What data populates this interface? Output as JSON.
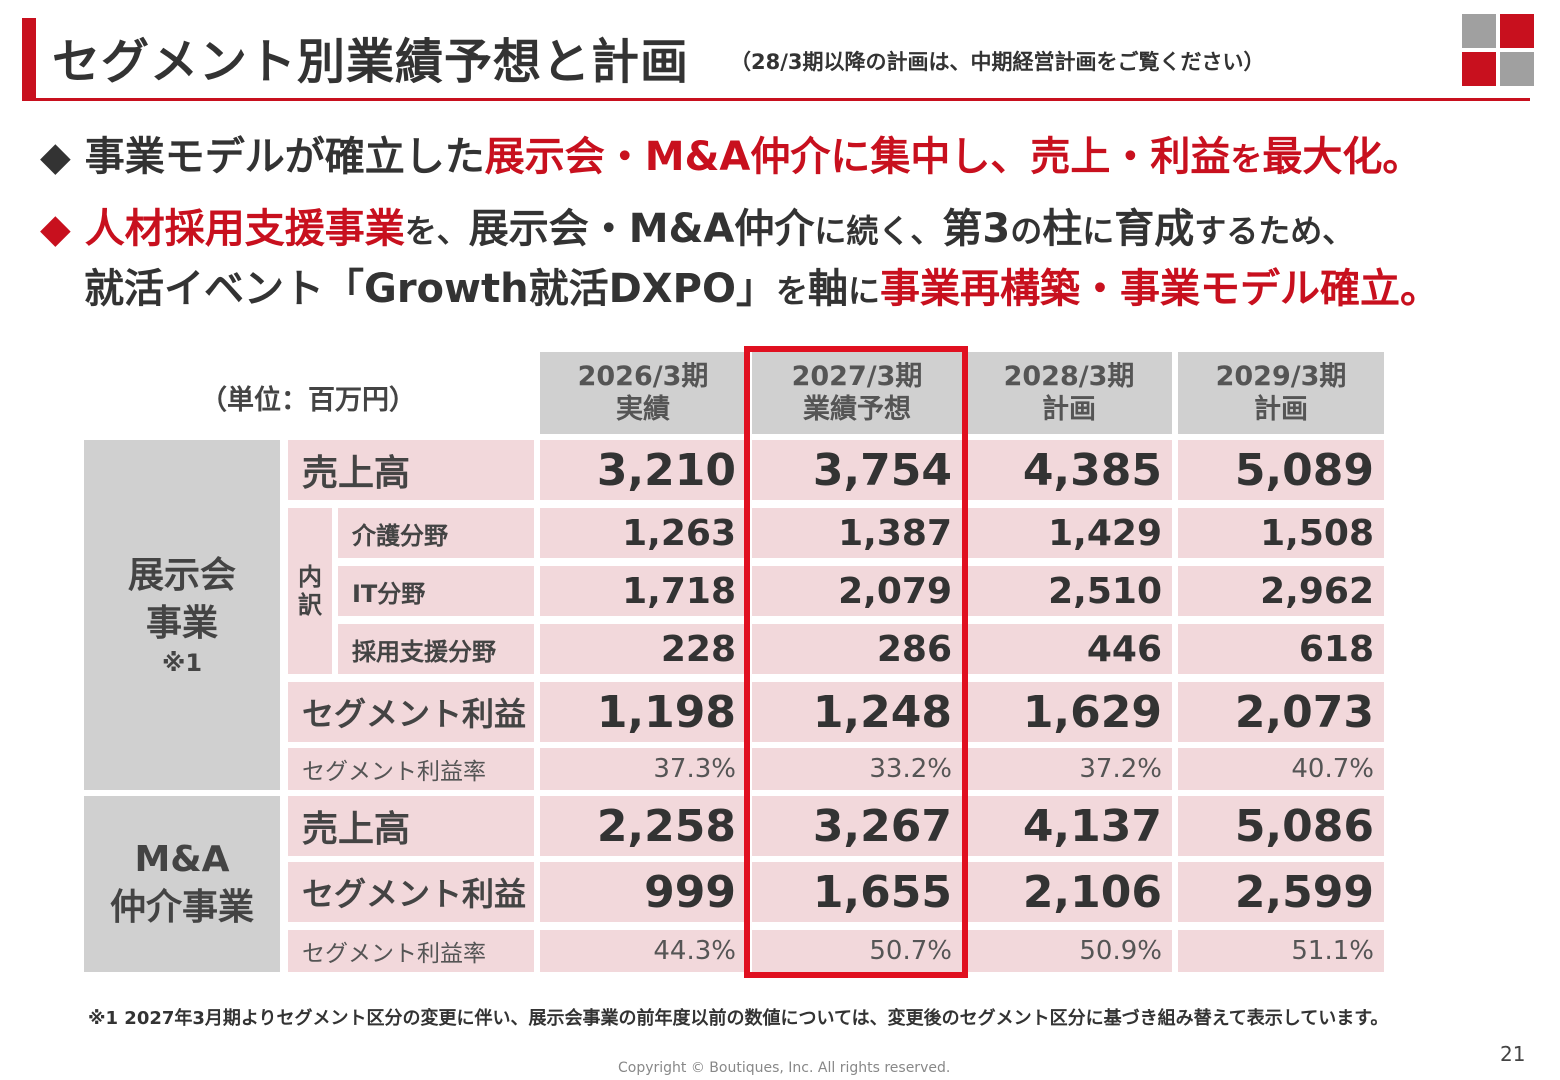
{
  "header": {
    "title": "セグメント別業績予想と計画",
    "subtitle": "（28/3期以降の計画は、中期経営計画をご覧ください）"
  },
  "bullets": {
    "b1": {
      "mark": "◆",
      "p1": "事業モデルが確立した",
      "p2": "展示会・M&A仲介に集中し、売上・利益",
      "p3": "を",
      "p4": "最大化。"
    },
    "b2": {
      "mark": "◆",
      "p1": "人材採用支援事業",
      "p2": "を、",
      "p3": "展示会・M&A仲介",
      "p4": "に続く、",
      "p5": "第3",
      "p6": "の",
      "p7": "柱",
      "p8": "に",
      "p9": "育成",
      "p10": "するため、"
    },
    "b3": {
      "p1": "就活イベント「Growth就活DXPO」",
      "p2": "を",
      "p3": "軸",
      "p4": "に",
      "p5": "事業再構築・事業モデル確立。"
    }
  },
  "table": {
    "unit": "（単位：百万円）",
    "columns": [
      {
        "year": "2026/3期",
        "kind": "実績"
      },
      {
        "year": "2027/3期",
        "kind": "業績予想"
      },
      {
        "year": "2028/3期",
        "kind": "計画"
      },
      {
        "year": "2029/3期",
        "kind": "計画"
      }
    ],
    "exhibition": {
      "name1": "展示会",
      "name2": "事業",
      "note": "※1",
      "breakdown_label1": "内",
      "breakdown_label2": "訳",
      "rows": [
        {
          "label": "売上高",
          "values": [
            "3,210",
            "3,754",
            "4,385",
            "5,089"
          ]
        },
        {
          "label": "介護分野",
          "values": [
            "1,263",
            "1,387",
            "1,429",
            "1,508"
          ]
        },
        {
          "label": "IT分野",
          "values": [
            "1,718",
            "2,079",
            "2,510",
            "2,962"
          ]
        },
        {
          "label": "採用支援分野",
          "values": [
            "228",
            "286",
            "446",
            "618"
          ]
        },
        {
          "label": "セグメント利益",
          "values": [
            "1,198",
            "1,248",
            "1,629",
            "2,073"
          ]
        },
        {
          "label": "セグメント利益率",
          "values": [
            "37.3%",
            "33.2%",
            "37.2%",
            "40.7%"
          ]
        }
      ]
    },
    "ma": {
      "name1": "M&A",
      "name2": "仲介事業",
      "rows": [
        {
          "label": "売上高",
          "values": [
            "2,258",
            "3,267",
            "4,137",
            "5,086"
          ]
        },
        {
          "label": "セグメント利益",
          "values": [
            "999",
            "1,655",
            "2,106",
            "2,599"
          ]
        },
        {
          "label": "セグメント利益率",
          "values": [
            "44.3%",
            "50.7%",
            "50.9%",
            "51.1%"
          ]
        }
      ]
    }
  },
  "footnote": "※1 2027年3月期よりセグメント区分の変更に伴い、展示会事業の前年度以前の数値については、変更後のセグメント区分に基づき組み替えて表示しています。",
  "page_number": "21",
  "copyright": "Copyright © Boutiques, Inc. All rights reserved.",
  "colors": {
    "accent": "#c8101e",
    "highlight": "#e01020",
    "header_gray": "#d0d0d0",
    "cell_pink": "#f2d8db"
  }
}
